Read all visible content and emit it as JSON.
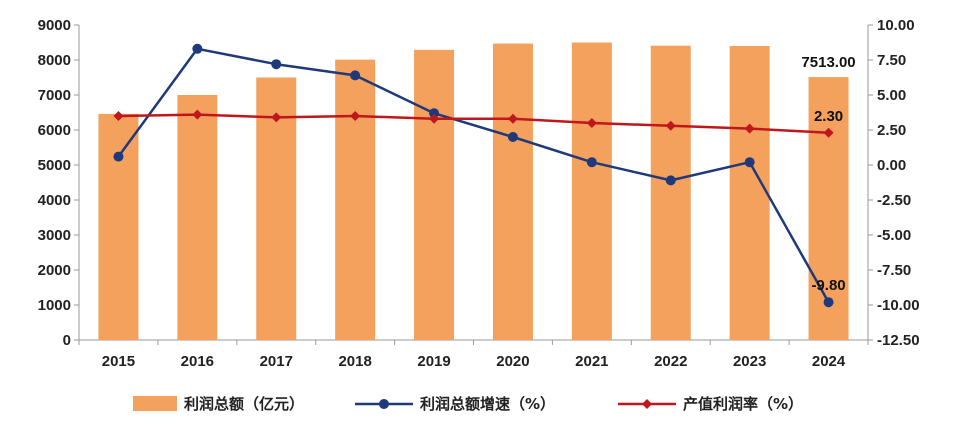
{
  "chart_data": {
    "type": "bar",
    "categories": [
      "2015",
      "2016",
      "2017",
      "2018",
      "2019",
      "2020",
      "2021",
      "2022",
      "2023",
      "2024"
    ],
    "series": [
      {
        "name": "利润总额（亿元）",
        "type": "bar",
        "axis": "left",
        "color": "#F4A15D",
        "values": [
          6460,
          7000,
          7500,
          8010,
          8290,
          8470,
          8500,
          8410,
          8400,
          7513
        ]
      },
      {
        "name": "利润总额增速（%）",
        "type": "line",
        "axis": "right",
        "color": "#1F3A7A",
        "values": [
          0.6,
          8.3,
          7.2,
          6.4,
          3.7,
          2.0,
          0.2,
          -1.1,
          0.2,
          -9.8
        ]
      },
      {
        "name": "产值利润率（%）",
        "type": "line",
        "axis": "right",
        "color": "#C0171D",
        "values": [
          3.5,
          3.6,
          3.4,
          3.5,
          3.3,
          3.3,
          3.0,
          2.8,
          2.6,
          2.3
        ]
      }
    ],
    "ylim_left": [
      0,
      9000
    ],
    "yticks_left": [
      "0",
      "1000",
      "2000",
      "3000",
      "4000",
      "5000",
      "6000",
      "7000",
      "8000",
      "9000"
    ],
    "ylim_right": [
      -12.5,
      10
    ],
    "yticks_right": [
      "-12.50",
      "-10.00",
      "-7.50",
      "-5.00",
      "-2.50",
      "0.00",
      "2.50",
      "5.00",
      "7.50",
      "10.00"
    ],
    "data_labels": [
      {
        "series": 0,
        "index": 9,
        "text": "7513.00"
      },
      {
        "series": 2,
        "index": 9,
        "text": "2.30"
      },
      {
        "series": 1,
        "index": 9,
        "text": "-9.80"
      }
    ],
    "grid": false,
    "legend_position": "bottom"
  }
}
